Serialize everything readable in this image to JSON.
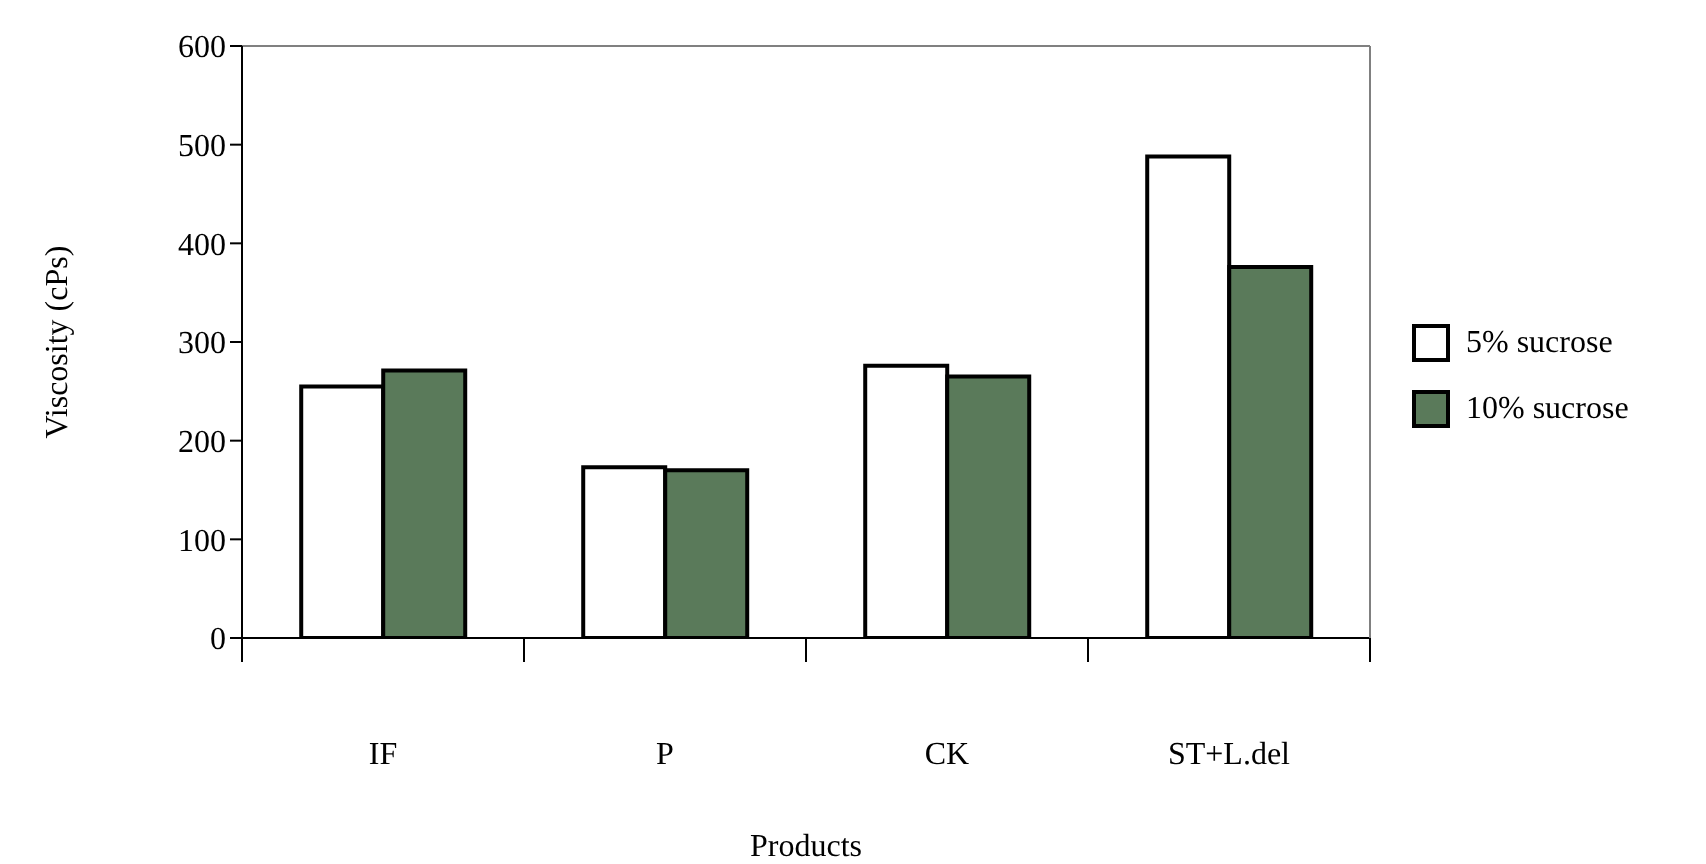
{
  "chart_data": {
    "type": "bar",
    "xlabel": "Products",
    "ylabel": "Viscosity (cPs)",
    "categories": [
      "IF",
      "P",
      "CK",
      "ST+L.del"
    ],
    "series": [
      {
        "name": "5% sucrose",
        "color": "#ffffff",
        "values": [
          255,
          173,
          276,
          488
        ]
      },
      {
        "name": "10% sucrose",
        "color": "#5a7a5a",
        "values": [
          271,
          170,
          265,
          376
        ]
      }
    ],
    "ylim": [
      0,
      600
    ],
    "yticks": [
      0,
      100,
      200,
      300,
      400,
      500,
      600
    ],
    "grid": false,
    "legend": "right"
  }
}
